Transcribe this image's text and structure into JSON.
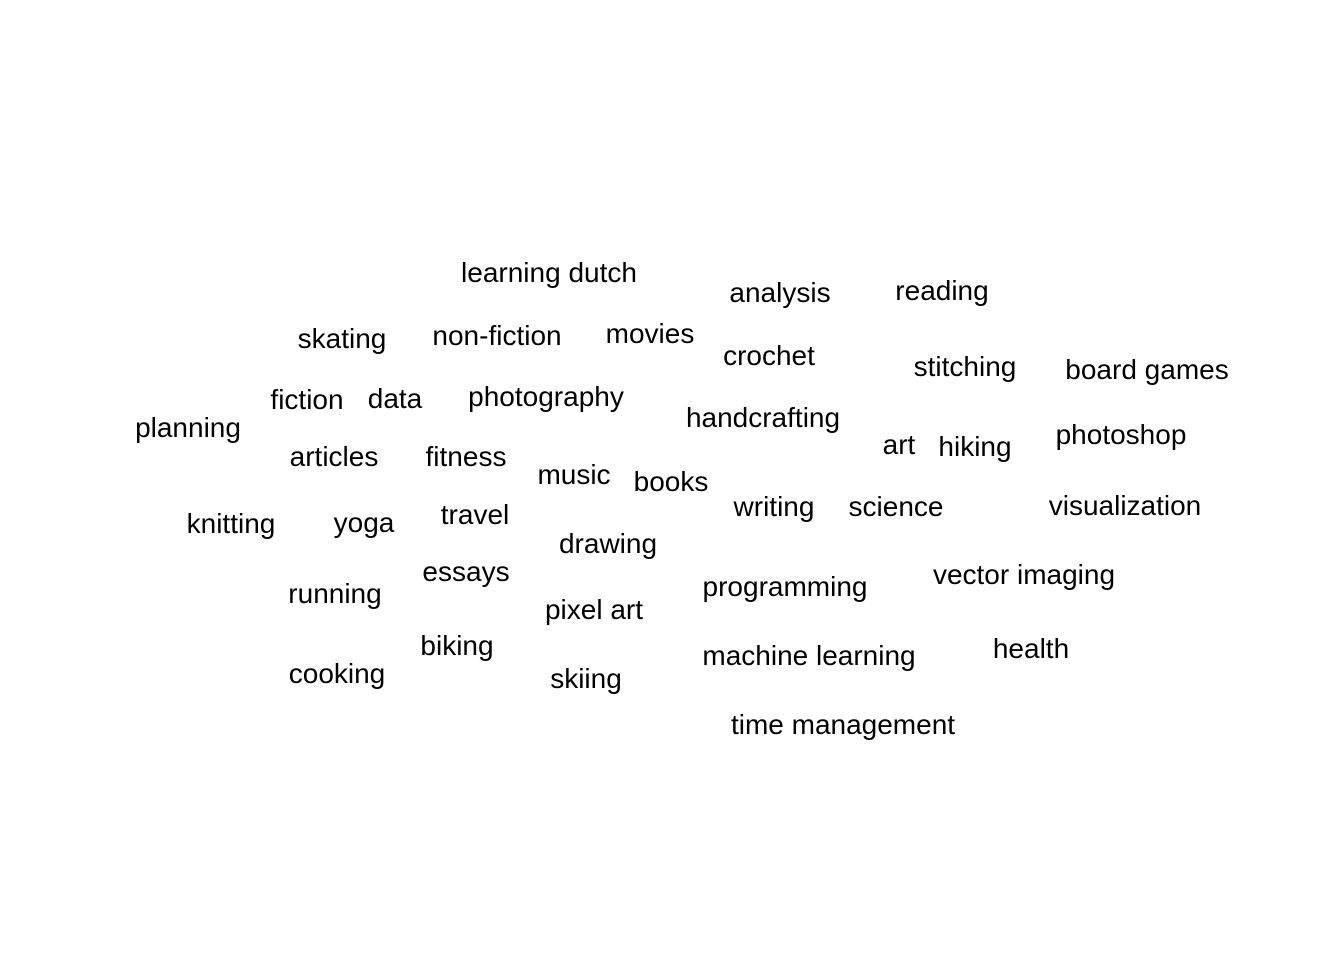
{
  "words": [
    "learning dutch",
    "analysis",
    "reading",
    "skating",
    "non-fiction",
    "movies",
    "crochet",
    "stitching",
    "board games",
    "fiction",
    "data",
    "photography",
    "planning",
    "handcrafting",
    "art",
    "hiking",
    "photoshop",
    "articles",
    "fitness",
    "music",
    "books",
    "knitting",
    "yoga",
    "travel",
    "writing",
    "science",
    "visualization",
    "drawing",
    "essays",
    "running",
    "programming",
    "vector imaging",
    "pixel art",
    "biking",
    "health",
    "machine learning",
    "cooking",
    "skiing",
    "time management"
  ],
  "colors": {
    "text": "#000000",
    "background": "#ffffff"
  }
}
